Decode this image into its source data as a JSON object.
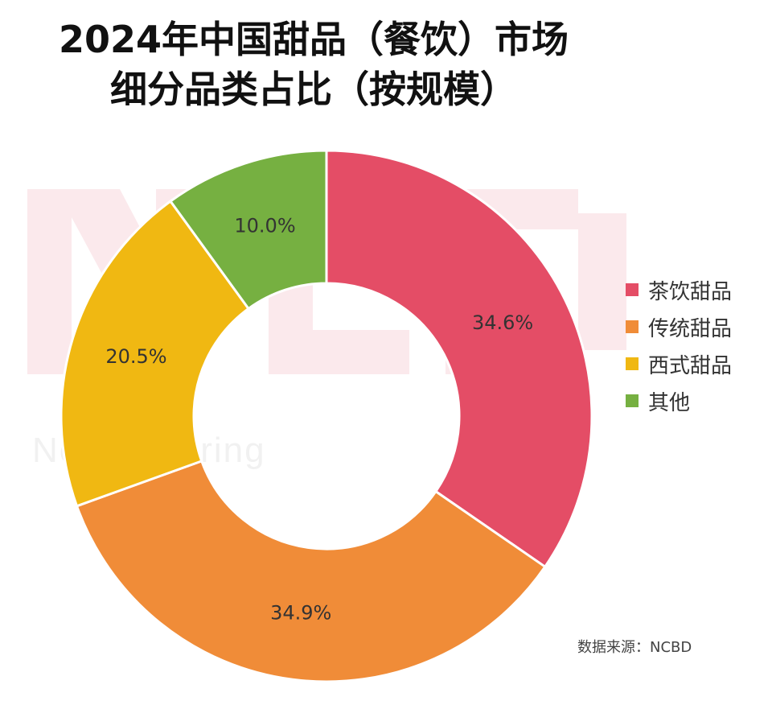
{
  "title_lines": [
    "2024年中国甜品（餐饮）市场",
    "细分品类占比（按规模）"
  ],
  "source": "数据来源：NCBD",
  "watermark": "New Catering",
  "chart_data": {
    "type": "pie",
    "donut": true,
    "title": "2024年中国甜品（餐饮）市场细分品类占比（按规模）",
    "categories": [
      "茶饮甜品",
      "传统甜品",
      "西式甜品",
      "其他"
    ],
    "values": [
      34.6,
      34.9,
      20.5,
      10.0
    ],
    "labels": [
      "34.6%",
      "34.9%",
      "20.5%",
      "10.0%"
    ],
    "colors": [
      "#e44d66",
      "#f08c38",
      "#f0b812",
      "#76b041"
    ],
    "legend": "right"
  }
}
